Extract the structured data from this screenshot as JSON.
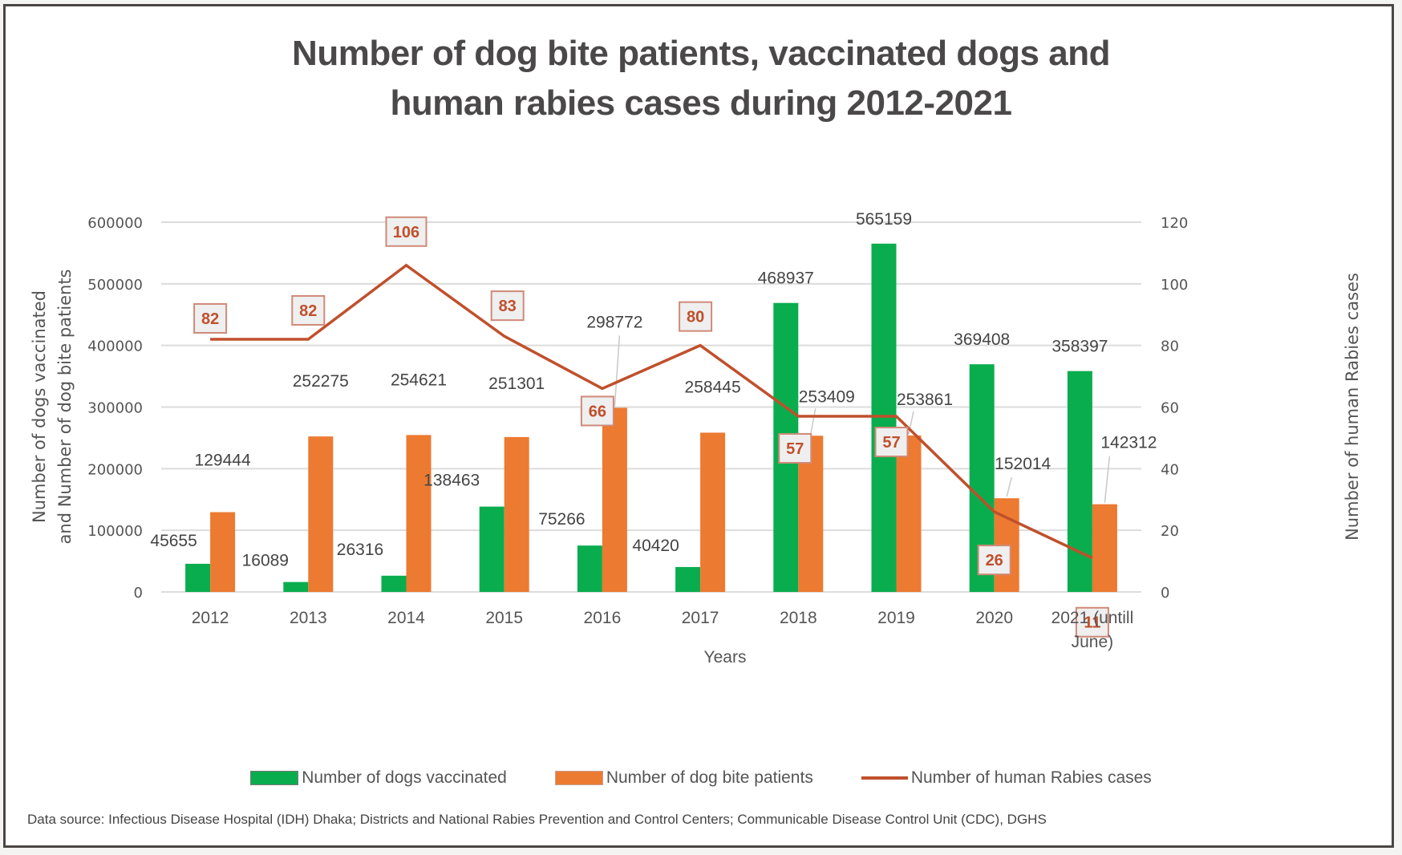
{
  "chart_data": {
    "type": "bar",
    "title": "Number of dog bite patients, vaccinated dogs and human rabies cases during 2012-2021",
    "title_lines": [
      "Number of dog bite patients, vaccinated dogs and",
      "human rabies cases during 2012-2021"
    ],
    "xlabel": "Years",
    "ylabel_left_lines": [
      "Number of dogs vaccinated",
      "and Number of dog bite patients"
    ],
    "ylabel_right": "Number of human Rabies cases",
    "categories": [
      "2012",
      "2013",
      "2014",
      "2015",
      "2016",
      "2017",
      "2018",
      "2019",
      "2020",
      "2021 (untill June)"
    ],
    "category_lines": [
      [
        "2012"
      ],
      [
        "2013"
      ],
      [
        "2014"
      ],
      [
        "2015"
      ],
      [
        "2016"
      ],
      [
        "2017"
      ],
      [
        "2018"
      ],
      [
        "2019"
      ],
      [
        "2020"
      ],
      [
        "2021 (untill",
        "June)"
      ]
    ],
    "ylim_left": [
      0,
      600000
    ],
    "yticks_left": [
      "0",
      "100000",
      "200000",
      "300000",
      "400000",
      "500000",
      "600000"
    ],
    "ylim_right": [
      0,
      120
    ],
    "yticks_right": [
      "0",
      "20",
      "40",
      "60",
      "80",
      "100",
      "120"
    ],
    "grid": true,
    "legend_position": "bottom",
    "series": [
      {
        "name": "Number of dogs vaccinated",
        "type": "bar",
        "axis": "left",
        "color": "#0aad4e",
        "values": [
          45655,
          16089,
          26316,
          138463,
          75266,
          40420,
          468937,
          565159,
          369408,
          358397
        ]
      },
      {
        "name": "Number of dog bite patients",
        "type": "bar",
        "axis": "left",
        "color": "#ec7a31",
        "values": [
          129444,
          252275,
          254621,
          251301,
          298772,
          258445,
          253409,
          253861,
          152014,
          142312
        ]
      },
      {
        "name": "Number of human Rabies cases",
        "type": "line",
        "axis": "right",
        "color": "#c0502c",
        "values": [
          82,
          82,
          106,
          83,
          66,
          80,
          57,
          57,
          26,
          11
        ]
      }
    ],
    "source_note": "Data source: Infectious Disease Hospital (IDH) Dhaka; Districts and National Rabies Prevention and Control Centers; Communicable Disease Control Unit (CDC), DGHS"
  }
}
